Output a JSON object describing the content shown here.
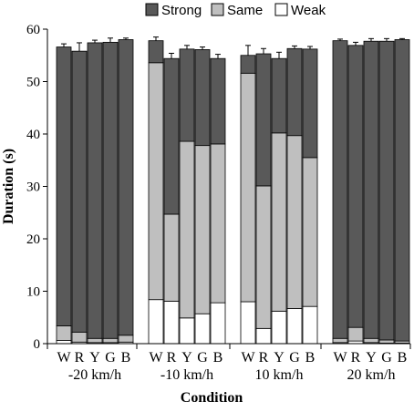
{
  "chart_data": {
    "type": "bar",
    "stacked": true,
    "xlabel": "Condition",
    "ylabel": "Duration (s)",
    "ylim": [
      0,
      60
    ],
    "yticks": [
      0,
      10,
      20,
      30,
      40,
      50,
      60
    ],
    "grid": false,
    "legend_position": "top",
    "legend": [
      {
        "name": "Strong",
        "color": "#595959"
      },
      {
        "name": "Same",
        "color": "#bfbfbf"
      },
      {
        "name": "Weak",
        "color": "#ffffff"
      }
    ],
    "groups": [
      {
        "label": "-20 km/h",
        "bars": [
          {
            "label": "W",
            "weak": 0.6,
            "same": 2.8,
            "strong": 53.2,
            "err": 0.6
          },
          {
            "label": "R",
            "weak": 0.3,
            "same": 1.9,
            "strong": 53.6,
            "err": 1.6
          },
          {
            "label": "Y",
            "weak": 0.2,
            "same": 0.8,
            "strong": 56.4,
            "err": 0.5
          },
          {
            "label": "G",
            "weak": 0.2,
            "same": 0.8,
            "strong": 56.5,
            "err": 0.8
          },
          {
            "label": "B",
            "weak": 0.3,
            "same": 1.3,
            "strong": 56.4,
            "err": 0.3
          }
        ]
      },
      {
        "label": "-10 km/h",
        "bars": [
          {
            "label": "W",
            "weak": 8.4,
            "same": 45.2,
            "strong": 4.2,
            "err": 0.7
          },
          {
            "label": "R",
            "weak": 8.1,
            "same": 16.6,
            "strong": 29.7,
            "err": 1.0
          },
          {
            "label": "Y",
            "weak": 4.9,
            "same": 33.7,
            "strong": 17.6,
            "err": 0.7
          },
          {
            "label": "G",
            "weak": 5.7,
            "same": 32.1,
            "strong": 18.3,
            "err": 0.5
          },
          {
            "label": "B",
            "weak": 7.8,
            "same": 30.3,
            "strong": 16.3,
            "err": 0.8
          }
        ]
      },
      {
        "label": "10 km/h",
        "bars": [
          {
            "label": "W",
            "weak": 8.0,
            "same": 43.6,
            "strong": 3.4,
            "err": 1.9
          },
          {
            "label": "R",
            "weak": 2.9,
            "same": 27.2,
            "strong": 25.2,
            "err": 1.0
          },
          {
            "label": "Y",
            "weak": 6.2,
            "same": 34.0,
            "strong": 14.2,
            "err": 1.2
          },
          {
            "label": "G",
            "weak": 6.7,
            "same": 33.0,
            "strong": 16.6,
            "err": 0.5
          },
          {
            "label": "B",
            "weak": 7.1,
            "same": 28.4,
            "strong": 20.7,
            "err": 0.5
          }
        ]
      },
      {
        "label": "20 km/h",
        "bars": [
          {
            "label": "W",
            "weak": 0.2,
            "same": 0.8,
            "strong": 56.8,
            "err": 0.3
          },
          {
            "label": "R",
            "weak": 0.5,
            "same": 2.6,
            "strong": 53.8,
            "err": 0.6
          },
          {
            "label": "Y",
            "weak": 0.2,
            "same": 0.8,
            "strong": 56.7,
            "err": 0.5
          },
          {
            "label": "G",
            "weak": 0.1,
            "same": 0.6,
            "strong": 57.0,
            "err": 0.5
          },
          {
            "label": "B",
            "weak": 0.1,
            "same": 0.4,
            "strong": 57.5,
            "err": 0.2
          }
        ]
      }
    ]
  }
}
